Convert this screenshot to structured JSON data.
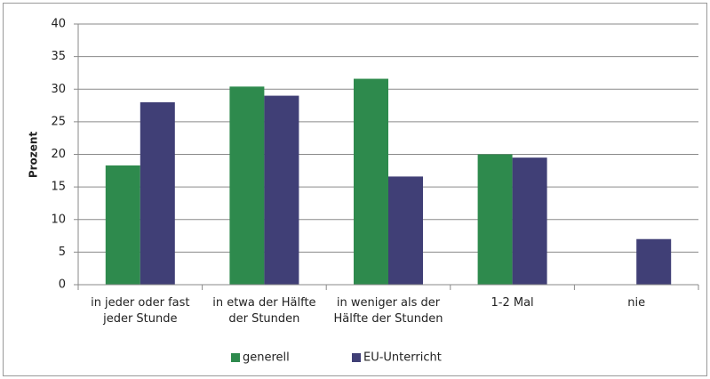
{
  "chart_data": {
    "type": "bar",
    "y_label": "Prozent",
    "categories": [
      "in jeder oder fast jeder Stunde",
      "in etwa der Hälfte der Stunden",
      "in weniger als der Hälfte der Stunden",
      "1-2 Mal",
      "nie"
    ],
    "series": [
      {
        "name": "generell",
        "color": "#2e8a4d",
        "values": [
          18.3,
          30.4,
          31.6,
          20.0,
          null
        ]
      },
      {
        "name": "EU-Unterricht",
        "color": "#403f76",
        "values": [
          28.0,
          29.0,
          16.6,
          19.5,
          7.0
        ]
      }
    ],
    "ylim": [
      0,
      40
    ],
    "yticks": [
      0,
      5,
      10,
      15,
      20,
      25,
      30,
      35,
      40
    ],
    "grid": true,
    "legend": "bottom"
  }
}
